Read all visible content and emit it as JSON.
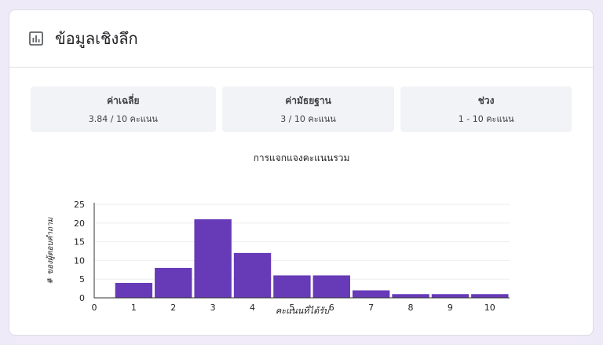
{
  "header": {
    "title": "ข้อมูลเชิงลึก",
    "icon": "bar-chart-icon"
  },
  "stats": [
    {
      "label": "ค่าเฉลี่ย",
      "value": "3.84 / 10 คะแนน"
    },
    {
      "label": "ค่ามัธยฐาน",
      "value": "3 / 10 คะแนน"
    },
    {
      "label": "ช่วง",
      "value": "1 - 10 คะแนน"
    }
  ],
  "colors": {
    "bar": "#673ab7",
    "background": "#efeaf8"
  },
  "chart_data": {
    "type": "bar",
    "title": "การแจกแจงคะแนนรวม",
    "xlabel": "คะแนนที่ได้รับ",
    "ylabel": "# ของผู้ตอบคำถาม",
    "categories": [
      1,
      2,
      3,
      4,
      5,
      6,
      7,
      8,
      9,
      10
    ],
    "values": [
      4,
      8,
      21,
      12,
      6,
      6,
      2,
      1,
      1,
      1
    ],
    "x_ticks": [
      "0",
      "1",
      "2",
      "3",
      "4",
      "5",
      "6",
      "7",
      "8",
      "9",
      "10"
    ],
    "y_ticks": [
      "0",
      "5",
      "10",
      "15",
      "20",
      "25"
    ],
    "ylim": [
      0,
      25
    ],
    "xlim": [
      0,
      10.5
    ],
    "grid": true
  }
}
